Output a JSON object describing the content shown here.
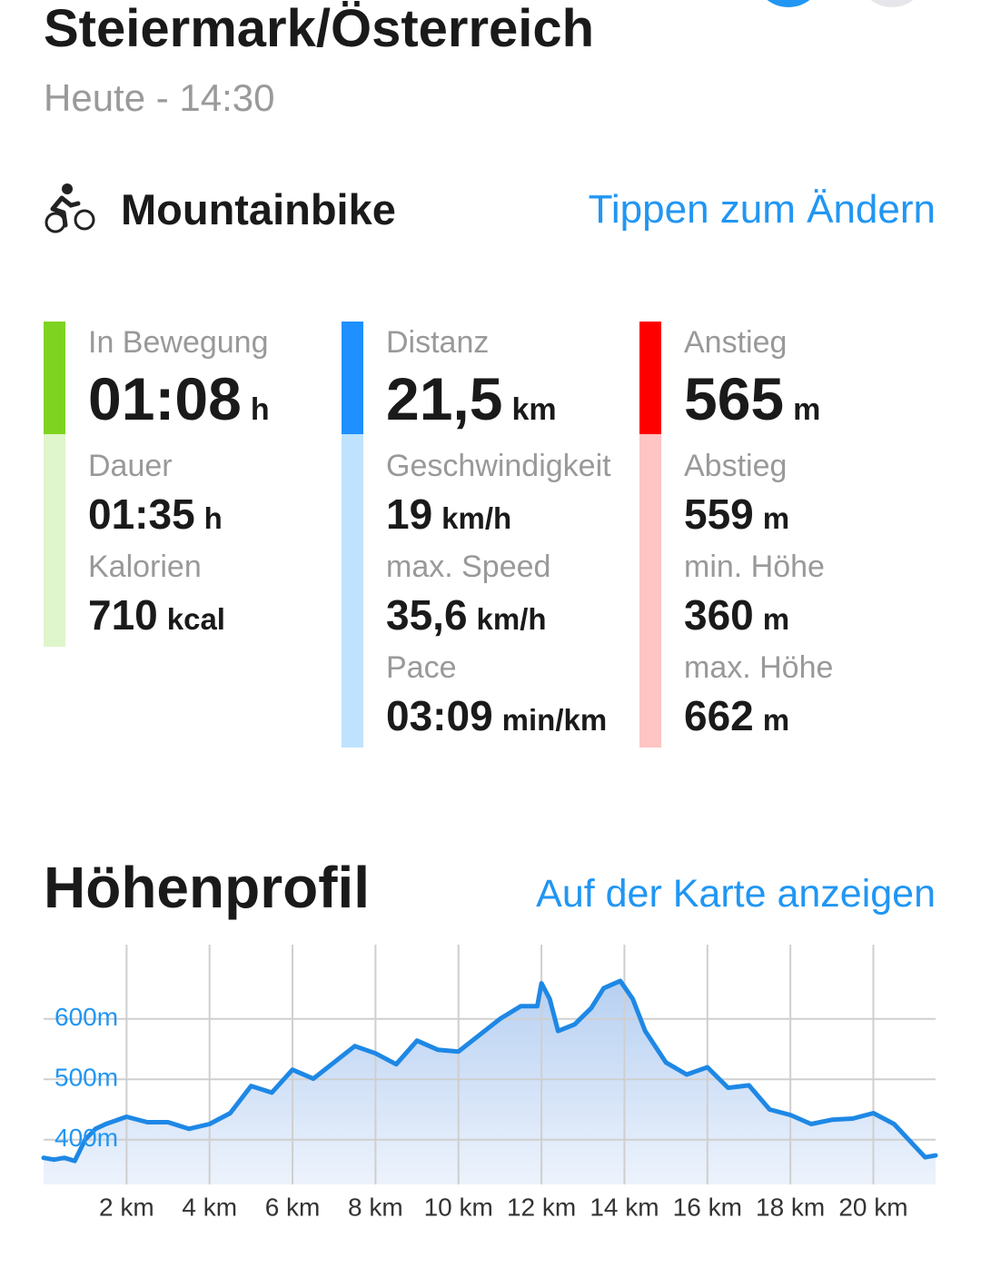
{
  "header": {
    "title": "Steiermark/Österreich",
    "subtitle": "Heute - 14:30"
  },
  "activity": {
    "name": "Mountainbike",
    "action": "Tippen zum Ändern"
  },
  "stats": {
    "columns": [
      {
        "items": [
          {
            "label": "In Bewegung",
            "value": "01:08",
            "unit": "h"
          },
          {
            "label": "Dauer",
            "value": "01:35",
            "unit": "h"
          },
          {
            "label": "Kalorien",
            "value": "710",
            "unit": "kcal"
          }
        ]
      },
      {
        "items": [
          {
            "label": "Distanz",
            "value": "21,5",
            "unit": "km"
          },
          {
            "label": "Geschwindigkeit",
            "value": "19",
            "unit": "km/h"
          },
          {
            "label": "max. Speed",
            "value": "35,6",
            "unit": "km/h"
          },
          {
            "label": "Pace",
            "value": "03:09",
            "unit": "min/km"
          }
        ]
      },
      {
        "items": [
          {
            "label": "Anstieg",
            "value": "565",
            "unit": "m"
          },
          {
            "label": "Abstieg",
            "value": "559",
            "unit": "m"
          },
          {
            "label": "min. Höhe",
            "value": "360",
            "unit": "m"
          },
          {
            "label": "max. Höhe",
            "value": "662",
            "unit": "m"
          }
        ]
      }
    ]
  },
  "profile": {
    "title": "Höhenprofil",
    "action": "Auf der Karte anzeigen"
  },
  "chart_data": {
    "type": "area",
    "color": "#1e88e5",
    "grid": true,
    "x": [
      0,
      0.25,
      0.5,
      0.75,
      1,
      1.25,
      1.5,
      2,
      2.5,
      3,
      3.5,
      4,
      4.5,
      5,
      5.5,
      6,
      6.5,
      7,
      7.5,
      8,
      8.5,
      9,
      9.5,
      10,
      10.5,
      11,
      11.5,
      11.9,
      12,
      12.2,
      12.4,
      12.8,
      13.2,
      13.5,
      13.9,
      14.2,
      14.5,
      15,
      15.5,
      16,
      16.5,
      17,
      17.5,
      18,
      18.5,
      19,
      19.5,
      20,
      20.5,
      21,
      21.25,
      21.5
    ],
    "values": [
      370,
      367,
      370,
      365,
      400,
      418,
      426,
      438,
      429,
      429,
      418,
      426,
      444,
      489,
      478,
      516,
      501,
      528,
      555,
      543,
      525,
      564,
      549,
      546,
      573,
      600,
      621,
      621,
      659,
      633,
      580,
      591,
      618,
      651,
      663,
      633,
      580,
      528,
      508,
      520,
      486,
      490,
      450,
      441,
      426,
      433,
      435,
      444,
      426,
      389,
      371,
      374
    ],
    "xlim": [
      0,
      21.5
    ],
    "ylim": [
      326,
      723
    ],
    "xticks": [
      {
        "value": 2,
        "label": "2 km"
      },
      {
        "value": 4,
        "label": "4 km"
      },
      {
        "value": 6,
        "label": "6 km"
      },
      {
        "value": 8,
        "label": "8 km"
      },
      {
        "value": 10,
        "label": "10 km"
      },
      {
        "value": 12,
        "label": "12 km"
      },
      {
        "value": 14,
        "label": "14 km"
      },
      {
        "value": 16,
        "label": "16 km"
      },
      {
        "value": 18,
        "label": "18 km"
      },
      {
        "value": 20,
        "label": "20 km"
      }
    ],
    "yticks": [
      {
        "value": 400,
        "label": "400m"
      },
      {
        "value": 500,
        "label": "500m"
      },
      {
        "value": 600,
        "label": "600m"
      }
    ]
  }
}
